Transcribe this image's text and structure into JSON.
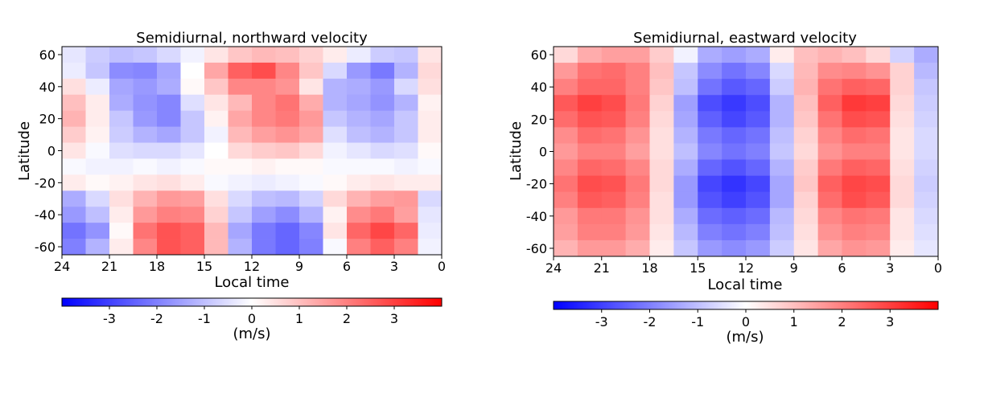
{
  "colorbar": {
    "vmin": -4,
    "vmax": 4,
    "ticks": [
      -3,
      -2,
      -1,
      0,
      1,
      2,
      3
    ],
    "label": "(m/s)",
    "colors": {
      "low": "#0000ff",
      "mid": "#ffffff",
      "high": "#ff0000"
    }
  },
  "chart_data": [
    {
      "type": "heatmap",
      "title": "Semidiurnal, northward velocity",
      "xlabel": "Local time",
      "ylabel": "Latitude",
      "x_direction": "decreasing",
      "xlim": [
        24,
        0
      ],
      "ylim": [
        -65,
        65
      ],
      "xticks": [
        24,
        21,
        18,
        15,
        12,
        9,
        6,
        3,
        0
      ],
      "yticks": [
        -60,
        -40,
        -20,
        0,
        20,
        40,
        60
      ],
      "x_centers": [
        23.25,
        21.75,
        20.25,
        18.75,
        17.25,
        15.75,
        14.25,
        12.75,
        11.25,
        9.75,
        8.25,
        6.75,
        5.25,
        3.75,
        2.25,
        0.75
      ],
      "y_centers": [
        60,
        50,
        40,
        30,
        20,
        10,
        0,
        -10,
        -20,
        -30,
        -40,
        -50,
        -60
      ],
      "values": [
        [
          -0.4,
          -0.8,
          -1.0,
          -0.9,
          -0.6,
          -0.2,
          0.4,
          0.9,
          1.1,
          1.0,
          0.7,
          0.3,
          -0.3,
          -0.8,
          -0.9,
          0.4
        ],
        [
          -0.3,
          -0.9,
          -1.8,
          -1.9,
          -1.4,
          0.0,
          1.4,
          2.5,
          2.8,
          1.9,
          0.9,
          -0.6,
          -1.6,
          -2.1,
          -1.2,
          0.6
        ],
        [
          0.5,
          -0.3,
          -1.4,
          -1.6,
          -1.3,
          0.1,
          0.9,
          1.9,
          1.9,
          1.7,
          0.4,
          -1.2,
          -1.3,
          -1.6,
          -0.6,
          0.5
        ],
        [
          1.0,
          0.3,
          -1.3,
          -1.7,
          -1.9,
          -0.5,
          0.4,
          1.1,
          1.9,
          2.2,
          1.3,
          -1.2,
          -1.4,
          -1.7,
          -1.2,
          0.2
        ],
        [
          1.2,
          0.3,
          -0.9,
          -1.6,
          -1.9,
          -0.9,
          0.2,
          1.4,
          1.9,
          2.1,
          1.6,
          -0.9,
          -1.2,
          -1.4,
          -0.9,
          0.3
        ],
        [
          0.8,
          0.2,
          -0.8,
          -1.2,
          -1.4,
          -0.9,
          -0.2,
          1.1,
          1.5,
          1.7,
          1.4,
          -0.5,
          -1.0,
          -1.2,
          -0.9,
          0.3
        ],
        [
          0.4,
          -0.1,
          -0.5,
          -0.6,
          -0.6,
          -0.4,
          0.0,
          0.6,
          0.8,
          0.9,
          0.6,
          -0.2,
          -0.4,
          -0.6,
          -0.5,
          0.1
        ],
        [
          -0.1,
          -0.2,
          -0.2,
          -0.1,
          -0.2,
          -0.1,
          0.1,
          0.1,
          0.2,
          0.1,
          0.1,
          -0.1,
          -0.1,
          -0.1,
          -0.2,
          -0.1
        ],
        [
          0.3,
          0.1,
          0.2,
          0.4,
          0.5,
          0.3,
          -0.1,
          -0.2,
          -0.3,
          -0.2,
          -0.1,
          0.1,
          0.3,
          0.4,
          0.3,
          0.3
        ],
        [
          -1.3,
          -0.6,
          0.5,
          1.2,
          1.6,
          1.5,
          0.5,
          -0.6,
          -1.0,
          -1.1,
          -0.7,
          0.6,
          1.2,
          1.5,
          1.6,
          -0.6
        ],
        [
          -1.6,
          -1.0,
          0.3,
          1.6,
          2.0,
          1.9,
          0.7,
          -0.9,
          -1.5,
          -1.8,
          -1.2,
          0.2,
          1.8,
          2.1,
          1.5,
          -0.4
        ],
        [
          -2.2,
          -1.7,
          0.1,
          2.2,
          2.7,
          2.5,
          1.1,
          -1.4,
          -2.1,
          -2.4,
          -1.9,
          0.4,
          2.4,
          2.9,
          2.4,
          -0.3
        ],
        [
          -2.0,
          -1.2,
          0.3,
          1.9,
          2.7,
          2.5,
          1.1,
          -1.2,
          -2.1,
          -2.4,
          -2.0,
          -0.1,
          2.0,
          2.5,
          2.0,
          -0.2
        ]
      ]
    },
    {
      "type": "heatmap",
      "title": "Semidiurnal, eastward velocity",
      "xlabel": "Local time",
      "ylabel": "Latitude",
      "x_direction": "decreasing",
      "xlim": [
        24,
        0
      ],
      "ylim": [
        -65,
        65
      ],
      "xticks": [
        24,
        21,
        18,
        15,
        12,
        9,
        6,
        3,
        0
      ],
      "yticks": [
        -60,
        -40,
        -20,
        0,
        20,
        40,
        60
      ],
      "x_centers": [
        23.25,
        21.75,
        20.25,
        18.75,
        17.25,
        15.75,
        14.25,
        12.75,
        11.25,
        9.75,
        8.25,
        6.75,
        5.25,
        3.75,
        2.25,
        0.75
      ],
      "y_centers": [
        60,
        50,
        40,
        30,
        20,
        10,
        0,
        -10,
        -20,
        -30,
        -40,
        -50,
        -60
      ],
      "values": [
        [
          0.6,
          1.3,
          1.5,
          1.5,
          0.8,
          -0.2,
          -1.3,
          -1.5,
          -1.3,
          0.3,
          1.0,
          1.2,
          1.0,
          0.6,
          -0.7,
          -1.3
        ],
        [
          1.6,
          2.2,
          2.3,
          2.0,
          1.0,
          -0.9,
          -1.8,
          -2.2,
          -1.9,
          -0.6,
          1.1,
          1.8,
          1.9,
          1.7,
          0.7,
          -1.1
        ],
        [
          2.0,
          2.4,
          2.4,
          2.0,
          0.9,
          -1.0,
          -2.2,
          -2.6,
          -2.4,
          -0.8,
          1.2,
          2.2,
          2.5,
          2.4,
          0.7,
          -0.9
        ],
        [
          2.6,
          3.0,
          2.8,
          2.1,
          0.7,
          -1.5,
          -2.8,
          -3.1,
          -2.8,
          -1.2,
          1.0,
          2.5,
          3.1,
          3.0,
          0.6,
          -0.8
        ],
        [
          2.3,
          2.7,
          2.6,
          2.0,
          0.6,
          -1.4,
          -2.5,
          -2.9,
          -2.6,
          -1.2,
          0.9,
          2.2,
          2.8,
          2.7,
          0.5,
          -0.7
        ],
        [
          1.8,
          2.3,
          2.2,
          1.7,
          0.5,
          -1.2,
          -2.1,
          -2.4,
          -2.2,
          -1.0,
          0.7,
          1.9,
          2.3,
          2.2,
          0.4,
          -0.6
        ],
        [
          1.6,
          2.0,
          2.0,
          1.5,
          0.5,
          -1.0,
          -1.9,
          -2.2,
          -2.0,
          -0.9,
          0.6,
          1.7,
          2.0,
          2.0,
          0.4,
          -0.6
        ],
        [
          1.9,
          2.4,
          2.3,
          1.9,
          0.6,
          -1.3,
          -2.4,
          -2.7,
          -2.4,
          -1.2,
          0.8,
          2.1,
          2.5,
          2.4,
          0.5,
          -0.7
        ],
        [
          2.2,
          2.8,
          2.7,
          2.1,
          0.6,
          -1.6,
          -2.9,
          -3.2,
          -2.9,
          -1.4,
          0.9,
          2.5,
          2.9,
          2.8,
          0.6,
          -0.8
        ],
        [
          2.0,
          2.6,
          2.5,
          2.0,
          0.5,
          -1.6,
          -2.7,
          -3.0,
          -2.7,
          -1.4,
          0.7,
          2.3,
          2.8,
          2.6,
          0.6,
          -0.7
        ],
        [
          1.6,
          2.1,
          2.1,
          1.7,
          0.5,
          -1.3,
          -2.3,
          -2.5,
          -2.3,
          -1.1,
          0.6,
          1.9,
          2.2,
          2.1,
          0.4,
          -0.6
        ],
        [
          1.5,
          2.0,
          2.0,
          1.6,
          0.4,
          -1.1,
          -2.0,
          -2.2,
          -2.0,
          -1.0,
          0.5,
          1.7,
          2.0,
          1.9,
          0.4,
          -0.5
        ],
        [
          1.2,
          1.6,
          1.6,
          1.3,
          0.3,
          -0.9,
          -1.6,
          -1.8,
          -1.6,
          -0.8,
          0.4,
          1.4,
          1.7,
          1.6,
          0.3,
          -0.4
        ]
      ]
    }
  ]
}
